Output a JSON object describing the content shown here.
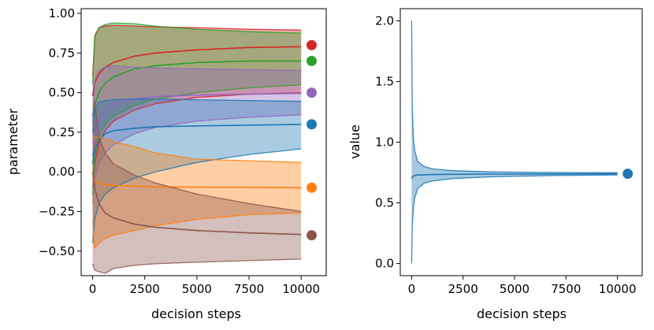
{
  "chart_data": [
    {
      "type": "line",
      "xlabel": "decision steps",
      "ylabel": "parameter",
      "xlim": [
        -550,
        11200
      ],
      "ylim": [
        -0.655,
        1.03
      ],
      "xticks": [
        0,
        2500,
        5000,
        7500,
        10000
      ],
      "xtick_labels": [
        "0",
        "2500",
        "5000",
        "7500",
        "10000"
      ],
      "yticks": [
        -0.5,
        -0.25,
        0.0,
        0.25,
        0.5,
        0.75,
        1.0
      ],
      "ytick_labels": [
        "−0.50",
        "−0.25",
        "0.00",
        "0.25",
        "0.50",
        "0.75",
        "1.00"
      ],
      "grid": false,
      "series": [
        {
          "color": "#d62728",
          "true_value": 0.8,
          "x": [
            0,
            100,
            300,
            600,
            1000,
            2000,
            3000,
            5000,
            7500,
            10000
          ],
          "mean": [
            0.48,
            0.56,
            0.62,
            0.66,
            0.69,
            0.73,
            0.75,
            0.77,
            0.785,
            0.79
          ],
          "upper": [
            0.6,
            0.86,
            0.91,
            0.92,
            0.925,
            0.92,
            0.915,
            0.91,
            0.9,
            0.895
          ],
          "lower": [
            -0.1,
            0.05,
            0.18,
            0.26,
            0.32,
            0.39,
            0.43,
            0.47,
            0.49,
            0.5
          ]
        },
        {
          "color": "#2ca02c",
          "true_value": 0.7,
          "x": [
            0,
            100,
            300,
            600,
            1000,
            2000,
            3000,
            5000,
            7500,
            10000
          ],
          "mean": [
            0.35,
            0.42,
            0.5,
            0.56,
            0.6,
            0.65,
            0.67,
            0.69,
            0.7,
            0.7
          ],
          "upper": [
            0.55,
            0.85,
            0.91,
            0.93,
            0.94,
            0.935,
            0.92,
            0.9,
            0.885,
            0.875
          ],
          "lower": [
            -0.15,
            0.1,
            0.22,
            0.3,
            0.35,
            0.42,
            0.46,
            0.5,
            0.53,
            0.55
          ]
        },
        {
          "color": "#9467bd",
          "true_value": 0.5,
          "x": [
            0,
            100,
            300,
            600,
            1000,
            2000,
            3000,
            5000,
            7500,
            10000
          ],
          "mean": [
            0.1,
            0.22,
            0.32,
            0.39,
            0.43,
            0.46,
            0.475,
            0.485,
            0.49,
            0.495
          ],
          "upper": [
            0.3,
            0.58,
            0.64,
            0.66,
            0.67,
            0.66,
            0.655,
            0.65,
            0.645,
            0.64
          ],
          "lower": [
            -0.2,
            -0.05,
            0.05,
            0.12,
            0.17,
            0.24,
            0.28,
            0.32,
            0.345,
            0.36
          ]
        },
        {
          "color": "#1f77b4",
          "true_value": 0.3,
          "x": [
            0,
            100,
            300,
            600,
            1000,
            2000,
            3000,
            5000,
            7500,
            10000
          ],
          "mean": [
            0.05,
            0.14,
            0.2,
            0.24,
            0.26,
            0.275,
            0.285,
            0.29,
            0.295,
            0.3
          ],
          "upper": [
            0.25,
            0.4,
            0.44,
            0.45,
            0.455,
            0.46,
            0.46,
            0.455,
            0.45,
            0.445
          ],
          "lower": [
            -0.45,
            -0.3,
            -0.2,
            -0.14,
            -0.1,
            -0.04,
            0.0,
            0.06,
            0.11,
            0.145
          ]
        },
        {
          "color": "#ff7f0e",
          "true_value": -0.1,
          "x": [
            0,
            100,
            300,
            600,
            1000,
            2000,
            3000,
            5000,
            7500,
            10000
          ],
          "mean": [
            -0.03,
            -0.05,
            -0.07,
            -0.08,
            -0.085,
            -0.09,
            -0.095,
            -0.097,
            -0.098,
            -0.1
          ],
          "upper": [
            0.2,
            0.22,
            0.22,
            0.21,
            0.19,
            0.16,
            0.12,
            0.08,
            0.07,
            0.06
          ],
          "lower": [
            -0.3,
            -0.48,
            -0.45,
            -0.42,
            -0.4,
            -0.37,
            -0.34,
            -0.3,
            -0.27,
            -0.26
          ]
        },
        {
          "color": "#8c564b",
          "true_value": -0.4,
          "x": [
            0,
            100,
            300,
            600,
            1000,
            2000,
            3000,
            5000,
            7500,
            10000
          ],
          "mean": [
            0.0,
            -0.1,
            -0.2,
            -0.26,
            -0.29,
            -0.33,
            -0.35,
            -0.37,
            -0.385,
            -0.395
          ],
          "upper": [
            0.35,
            0.45,
            0.22,
            0.12,
            0.05,
            -0.02,
            -0.07,
            -0.14,
            -0.2,
            -0.25
          ],
          "lower": [
            -0.58,
            -0.62,
            -0.63,
            -0.64,
            -0.61,
            -0.59,
            -0.58,
            -0.57,
            -0.56,
            -0.55
          ]
        }
      ]
    },
    {
      "type": "line",
      "xlabel": "decision steps",
      "ylabel": "value",
      "xlim": [
        -550,
        11200
      ],
      "ylim": [
        -0.1,
        2.1
      ],
      "xticks": [
        0,
        2500,
        5000,
        7500,
        10000
      ],
      "xtick_labels": [
        "0",
        "2500",
        "5000",
        "7500",
        "10000"
      ],
      "yticks": [
        0.0,
        0.5,
        1.0,
        1.5,
        2.0
      ],
      "ytick_labels": [
        "0.0",
        "0.5",
        "1.0",
        "1.5",
        "2.0"
      ],
      "grid": false,
      "series": [
        {
          "color": "#1f77b4",
          "true_value": 0.74,
          "x": [
            1,
            30,
            80,
            150,
            300,
            600,
            1000,
            2000,
            4000,
            7000,
            10000
          ],
          "mean": [
            0.7,
            0.71,
            0.72,
            0.725,
            0.73,
            0.73,
            0.733,
            0.735,
            0.737,
            0.738,
            0.74
          ],
          "upper": [
            2.0,
            1.3,
            1.05,
            0.93,
            0.84,
            0.8,
            0.78,
            0.765,
            0.755,
            0.75,
            0.748
          ],
          "lower": [
            0.0,
            0.3,
            0.45,
            0.54,
            0.62,
            0.66,
            0.68,
            0.7,
            0.715,
            0.725,
            0.73
          ]
        }
      ]
    }
  ]
}
